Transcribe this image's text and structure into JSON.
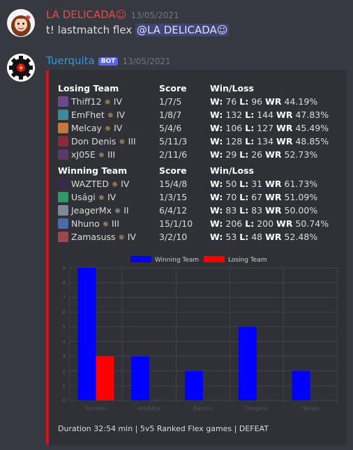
{
  "message1": {
    "username": "LA DELICADA☺",
    "timestamp": "13/05/2021",
    "text_prefix": "t! lastmatch flex ",
    "mention": "@LA DELICADA☺"
  },
  "message2": {
    "username": "Tuerquita",
    "bot_badge": "BOT",
    "timestamp": "13/05/2021"
  },
  "colors": {
    "accent": "#e10c18",
    "mention_bg": "#5865f2",
    "win_bar": "#0000ff",
    "lose_bar": "#ff0000"
  },
  "losing_team": {
    "headers": [
      "Losing Team",
      "Score",
      "Win/Loss"
    ],
    "players": [
      {
        "name": "Thiff12",
        "rank": "IV",
        "score": "1/7/5",
        "w": "76",
        "l": "96",
        "wr": "44.19%",
        "champ_color": "#6a4a8c"
      },
      {
        "name": "EmFhet",
        "rank": "IV",
        "score": "1/8/7",
        "w": "132",
        "l": "144",
        "wr": "47.83%",
        "champ_color": "#3a8a9a"
      },
      {
        "name": "Melcay",
        "rank": "IV",
        "score": "5/4/6",
        "w": "106",
        "l": "127",
        "wr": "45.49%",
        "champ_color": "#c9783a"
      },
      {
        "name": "Don Denis",
        "rank": "III",
        "score": "5/11/3",
        "w": "128",
        "l": "134",
        "wr": "48.85%",
        "champ_color": "#8a2a3a"
      },
      {
        "name": "xJ05E",
        "rank": "III",
        "score": "2/11/6",
        "w": "29",
        "l": "26",
        "wr": "52.73%",
        "champ_color": "#5a3a6a"
      }
    ]
  },
  "winning_team": {
    "headers": [
      "Winning Team",
      "Score",
      "Win/Loss"
    ],
    "players": [
      {
        "name": "WAZTED",
        "rank": "IV",
        "score": "15/4/8",
        "w": "50",
        "l": "31",
        "wr": "61.73%",
        "champ_color": "#3a2a4a"
      },
      {
        "name": "Usági",
        "rank": "IV",
        "score": "1/3/15",
        "w": "70",
        "l": "67",
        "wr": "51.09%",
        "champ_color": "#2a9a6a"
      },
      {
        "name": "JeagerMx",
        "rank": "II",
        "score": "6/4/12",
        "w": "83",
        "l": "83",
        "wr": "50.00%",
        "champ_color": "#7a8a9a",
        "silver": true
      },
      {
        "name": "Nhuno",
        "rank": "III",
        "score": "15/1/10",
        "w": "206",
        "l": "200",
        "wr": "50.74%",
        "champ_color": "#4a6aaa"
      },
      {
        "name": "Zamasuss",
        "rank": "IV",
        "score": "3/2/10",
        "w": "53",
        "l": "48",
        "wr": "52.48%",
        "champ_color": "#9a4a4a"
      }
    ]
  },
  "wl_labels": {
    "w": "W:",
    "l": "L:",
    "wr": "WR"
  },
  "chart_data": {
    "type": "bar",
    "categories": [
      "Torrents",
      "Inhibitor",
      "Barons",
      "Dragons",
      "Herals"
    ],
    "series": [
      {
        "name": "Winning Team",
        "values": [
          9,
          3,
          2,
          5,
          2
        ],
        "color": "#0000ff"
      },
      {
        "name": "Losing Team",
        "values": [
          3,
          0,
          0,
          0,
          0
        ],
        "color": "#ff0000"
      }
    ],
    "ylim": [
      0,
      9
    ],
    "yticks": [
      0,
      1,
      2,
      3,
      4,
      5,
      6,
      7,
      8,
      9
    ],
    "grid": true,
    "legend": "top-center"
  },
  "footer": "Duration 32:54 min | 5v5 Ranked Flex games | DEFEAT"
}
